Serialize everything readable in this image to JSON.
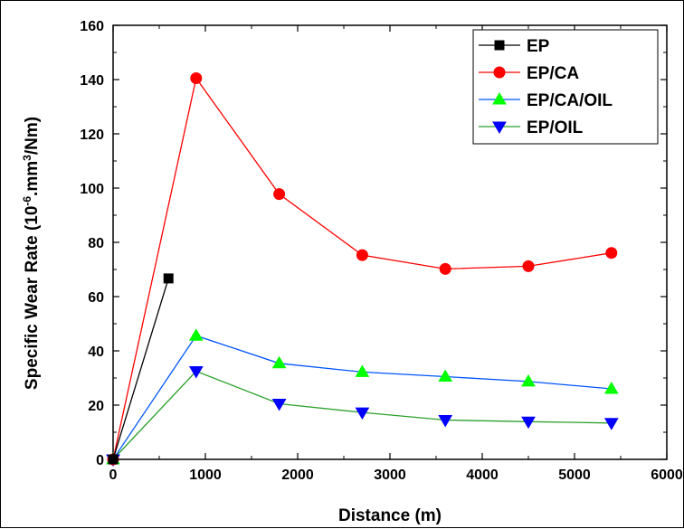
{
  "chart_data": {
    "type": "line",
    "xlabel": "Distance (m)",
    "ylabel_parts": {
      "prefix": "Specific Wear Rate (10",
      "exp1": "-6",
      "middle": ".mm",
      "exp2": "3",
      "suffix": "/Nm)"
    },
    "xlim": [
      0,
      6000
    ],
    "ylim": [
      0,
      160
    ],
    "x_ticks": [
      0,
      1000,
      2000,
      3000,
      4000,
      5000,
      6000
    ],
    "y_ticks": [
      0,
      20,
      40,
      60,
      80,
      100,
      120,
      140,
      160
    ],
    "grid": false,
    "legend_position": "top-right",
    "series": [
      {
        "name": "EP",
        "color": "#000000",
        "marker": "square",
        "x": [
          0,
          600
        ],
        "y": [
          0,
          66.7
        ]
      },
      {
        "name": "EP/CA",
        "color": "#ff0000",
        "marker": "circle",
        "x": [
          0,
          900,
          1800,
          2700,
          3600,
          4500,
          5400
        ],
        "y": [
          0,
          140.5,
          97.8,
          75.3,
          70.2,
          71.2,
          76.1
        ]
      },
      {
        "name": "EP/CA/OIL",
        "color": "#00ff00",
        "line_color": "#0055ff",
        "marker": "triangle-up",
        "x": [
          0,
          900,
          1800,
          2700,
          3600,
          4500,
          5400
        ],
        "y": [
          0,
          45.6,
          35.4,
          32.2,
          30.5,
          28.7,
          26.0
        ]
      },
      {
        "name": "EP/OIL",
        "color": "#0000ff",
        "line_color": "#2ca02c",
        "marker": "triangle-down",
        "x": [
          0,
          900,
          1800,
          2700,
          3600,
          4500,
          5400
        ],
        "y": [
          0,
          32.5,
          20.5,
          17.3,
          14.5,
          13.9,
          13.4
        ]
      }
    ]
  }
}
